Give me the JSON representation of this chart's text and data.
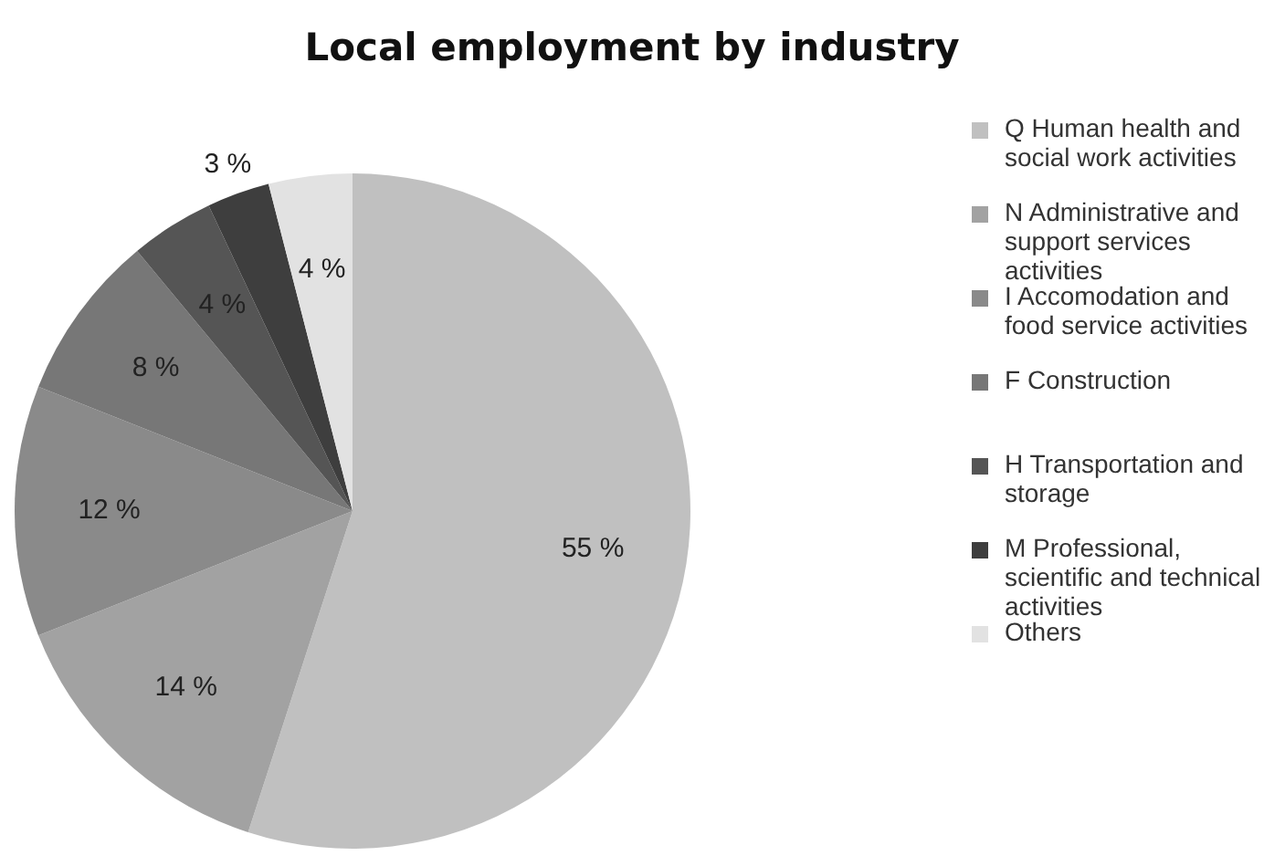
{
  "chart_data": {
    "type": "pie",
    "title": "Local employment by industry",
    "categories": [
      "Q Human health and social work activities",
      "N Administrative and support services activities",
      "I Accomodation and food service activities",
      "F Construction",
      "H Transportation and storage",
      "M Professional, scientific and technical activities",
      "Others"
    ],
    "values": [
      55,
      14,
      12,
      8,
      4,
      3,
      4
    ],
    "colors": [
      "#c0c0c0",
      "#a2a2a2",
      "#8a8a8a",
      "#777777",
      "#555555",
      "#3e3e3e",
      "#e2e2e2"
    ],
    "value_labels": [
      "55 %",
      "14 %",
      "12 %",
      "8 %",
      "4 %",
      "3 %",
      "4 %"
    ],
    "legend": "right"
  }
}
